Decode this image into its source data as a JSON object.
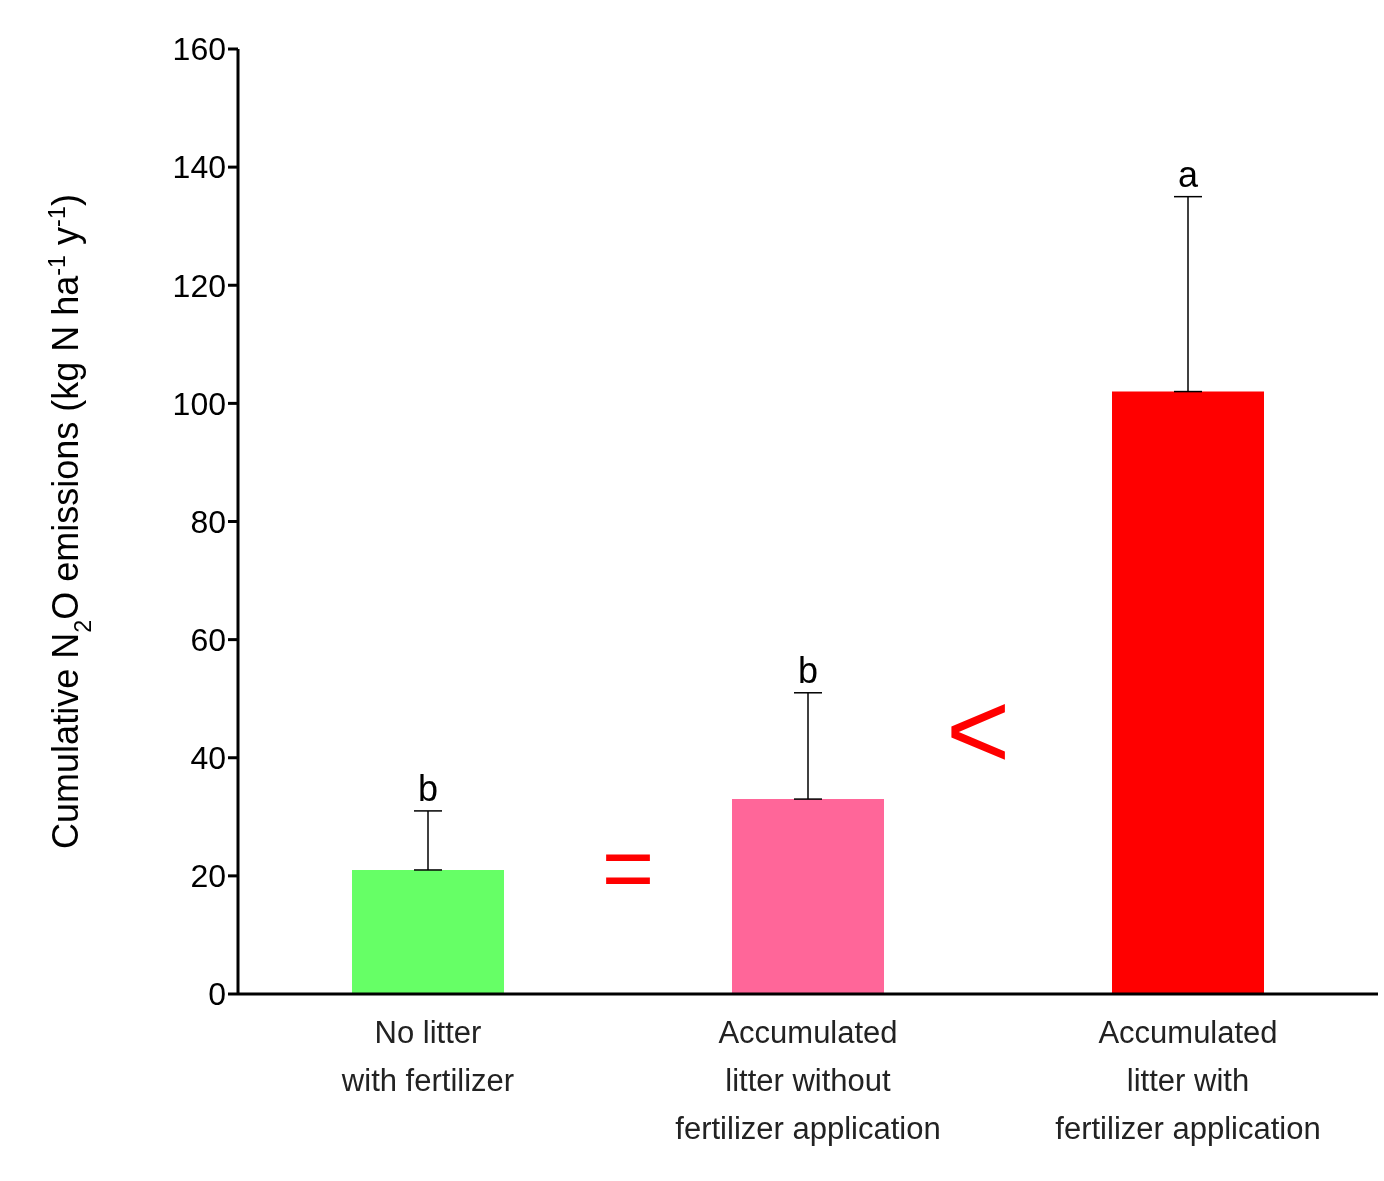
{
  "chart_data": {
    "type": "bar",
    "ylabel": "Cumulative N$_{2}$O emissions (kg N ha$^{-1}$ y$^{-1}$)",
    "categories": [
      "No litter\nwith fertilizer",
      "Accumulated\nlitter without\nfertilizer application",
      "Accumulated\nlitter with\nfertilizer application"
    ],
    "values": [
      21,
      33,
      102
    ],
    "colors": [
      "#66ff66",
      "#ff6699",
      "#ff0000"
    ],
    "errors": [
      [
        21,
        31
      ],
      [
        33,
        51
      ],
      [
        102,
        135
      ]
    ],
    "ylim": [
      0,
      160
    ],
    "yticks": [
      0,
      20,
      40,
      60,
      80,
      100,
      120,
      140,
      160
    ],
    "grid": false,
    "legend": false,
    "annotations": [
      {
        "text": "b",
        "x": "No litter\nwith fertilizer",
        "y": 31
      },
      {
        "text": "b",
        "x": "Accumulated\nlitter without\nfertilizer application",
        "y": 51
      },
      {
        "text": "a",
        "x": "Accumulated\nlitter with\nfertilizer application",
        "y": 135
      },
      "=",
      "<"
    ]
  }
}
